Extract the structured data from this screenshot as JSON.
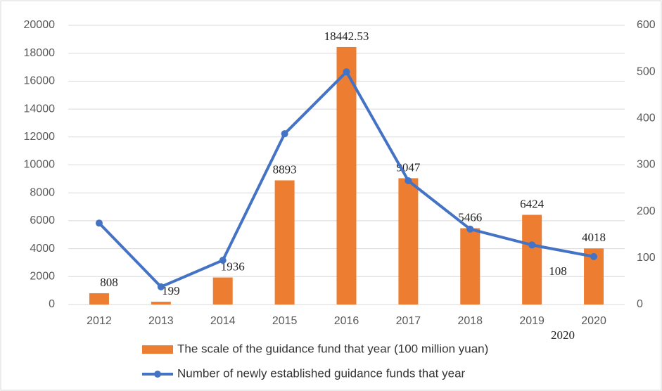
{
  "chart_data": {
    "type": "bar-line",
    "categories": [
      "2012",
      "2013",
      "2014",
      "2015",
      "2016",
      "2017",
      "2018",
      "2019",
      "2020"
    ],
    "series": [
      {
        "name": "The scale of the guidance fund that year (100 million yuan)",
        "type": "bar",
        "color": "#ed7d31",
        "values": [
          808,
          199,
          1936,
          8893,
          18442.53,
          9047,
          5466,
          6424,
          4018
        ]
      },
      {
        "name": "Number of newly established guidance funds that year",
        "type": "line",
        "axis": "y2",
        "color": "#4472c4",
        "values": [
          175,
          38,
          95,
          367,
          500,
          266,
          162,
          128,
          103
        ]
      }
    ],
    "ylim": [
      0,
      20000
    ],
    "yticks": [
      0,
      2000,
      4000,
      6000,
      8000,
      10000,
      12000,
      14000,
      16000,
      18000,
      20000
    ],
    "y2lim": [
      0,
      600
    ],
    "y2ticks": [
      0,
      100,
      200,
      300,
      400,
      500,
      600
    ],
    "grid": true,
    "legend": "bottom",
    "annotations": [
      "108",
      "2020"
    ]
  }
}
